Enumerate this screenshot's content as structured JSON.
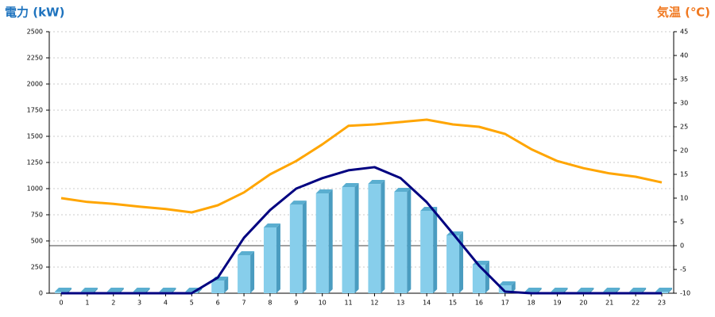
{
  "chart_data": {
    "type": "combo",
    "y_title": "電力 (kW)",
    "y2_title": "気温 (℃)",
    "categories": [
      "0",
      "1",
      "2",
      "3",
      "4",
      "5",
      "6",
      "7",
      "8",
      "9",
      "10",
      "11",
      "12",
      "13",
      "14",
      "15",
      "16",
      "17",
      "18",
      "19",
      "20",
      "21",
      "22",
      "23"
    ],
    "series": [
      {
        "type": "bar",
        "color": "#87ceeb",
        "values": [
          15,
          15,
          15,
          15,
          15,
          15,
          121,
          364,
          629,
          848,
          955,
          1015,
          1045,
          970,
          788,
          553,
          273,
          76,
          15,
          15,
          15,
          15,
          15,
          15
        ]
      },
      {
        "type": "line",
        "color": "#000080",
        "values": [
          0,
          0,
          0,
          0,
          0,
          0,
          150,
          530,
          795,
          1000,
          1100,
          1175,
          1205,
          1100,
          870,
          570,
          265,
          15,
          0,
          0,
          0,
          0,
          0,
          0
        ]
      },
      {
        "type": "line",
        "color": "#ffa500",
        "axis": "y2",
        "values": [
          10,
          9.2,
          8.8,
          8.2,
          7.7,
          7,
          8.5,
          11.2,
          15,
          17.8,
          21.3,
          25.2,
          25.5,
          26,
          26.5,
          25.5,
          25,
          23.5,
          20.3,
          17.8,
          16.3,
          15.2,
          14.5,
          13.3
        ]
      }
    ],
    "ylim": [
      0,
      2500
    ],
    "yticks": [
      0,
      250,
      500,
      750,
      1000,
      1250,
      1500,
      1750,
      2000,
      2250,
      2500
    ],
    "y2lim": [
      -10,
      45
    ],
    "y2ticks": [
      -10,
      -5,
      0,
      5,
      10,
      15,
      20,
      25,
      30,
      35,
      40,
      45
    ],
    "y2_refline": 0,
    "grid": true,
    "y_title_color": "#1e73be",
    "y2_title_color": "#f07820"
  }
}
